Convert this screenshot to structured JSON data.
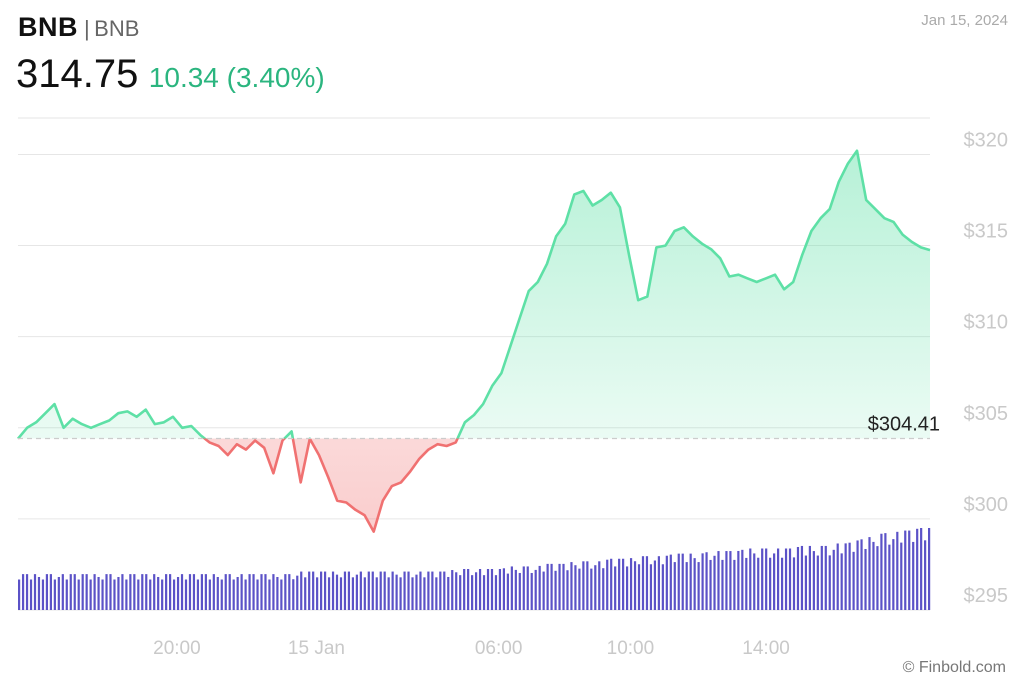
{
  "header": {
    "ticker": "BNB",
    "separator": "|",
    "name": "BNB",
    "price": "314.75",
    "change": "10.34 (3.40%)",
    "date": "Jan 15, 2024"
  },
  "credit": "© Finbold.com",
  "colors": {
    "up": "#5ee0a6",
    "down": "#f07171",
    "volume": "#5b52c7",
    "grid": "#e6e6e6",
    "change_text": "#2bb57f"
  },
  "chart_data": {
    "type": "line",
    "reference": {
      "value": 304.41,
      "label": "$304.41"
    },
    "ylim": [
      295,
      322
    ],
    "y_ticks": [
      {
        "value": 295,
        "label": "$295"
      },
      {
        "value": 300,
        "label": "$300"
      },
      {
        "value": 305,
        "label": "$305"
      },
      {
        "value": 310,
        "label": "$310"
      },
      {
        "value": 315,
        "label": "$315"
      },
      {
        "value": 320,
        "label": "$320"
      }
    ],
    "x_ticks": [
      {
        "value": 0.205,
        "label": "20:00"
      },
      {
        "value": 0.385,
        "label": "15 Jan"
      },
      {
        "value": 0.62,
        "label": "06:00"
      },
      {
        "value": 0.79,
        "label": "10:00"
      },
      {
        "value": 0.965,
        "label": "14:00"
      }
    ],
    "series": [
      {
        "x": [
          0,
          0.01,
          0.02,
          0.03,
          0.04,
          0.05,
          0.06,
          0.07,
          0.08,
          0.09,
          0.1,
          0.11,
          0.12,
          0.13,
          0.14,
          0.15,
          0.16,
          0.17,
          0.18,
          0.19,
          0.2,
          0.21,
          0.22,
          0.23,
          0.24,
          0.25,
          0.26,
          0.27,
          0.28,
          0.29,
          0.3,
          0.31,
          0.32,
          0.33,
          0.34,
          0.35,
          0.36,
          0.37,
          0.38,
          0.39,
          0.4,
          0.41,
          0.42,
          0.43,
          0.44,
          0.45,
          0.46,
          0.47,
          0.48,
          0.49,
          0.5,
          0.51,
          0.52,
          0.53,
          0.54,
          0.55,
          0.56,
          0.57,
          0.58,
          0.59,
          0.6,
          0.61,
          0.62,
          0.63,
          0.64,
          0.65,
          0.66,
          0.67,
          0.68,
          0.69,
          0.7,
          0.71,
          0.72,
          0.73,
          0.74,
          0.75,
          0.76,
          0.77,
          0.78,
          0.79,
          0.8,
          0.81,
          0.82,
          0.83,
          0.84,
          0.85,
          0.86,
          0.87,
          0.88,
          0.89,
          0.9,
          0.91,
          0.92,
          0.93,
          0.94,
          0.95,
          0.96,
          0.97,
          0.98,
          0.99,
          1.0
        ],
        "values": [
          304.4,
          305.0,
          305.3,
          305.8,
          306.3,
          305.0,
          305.5,
          305.2,
          305.0,
          305.2,
          305.4,
          305.8,
          305.9,
          305.6,
          306.0,
          305.2,
          305.3,
          305.6,
          305.0,
          305.1,
          304.6,
          304.2,
          304.0,
          303.5,
          304.1,
          303.8,
          304.3,
          303.9,
          302.5,
          304.3,
          304.8,
          302.0,
          304.4,
          303.5,
          302.3,
          301.0,
          300.9,
          300.5,
          300.2,
          299.3,
          301.0,
          301.8,
          302.0,
          302.6,
          303.3,
          303.8,
          304.1,
          304.0,
          304.2,
          305.3,
          305.7,
          306.3,
          307.3,
          308.0,
          309.5,
          311.0,
          312.5,
          313.0,
          314.0,
          315.5,
          316.2,
          317.8,
          318.0,
          317.2,
          317.5,
          317.9,
          317.1,
          314.5,
          312.0,
          312.2,
          314.9,
          315.0,
          315.8,
          316.0,
          315.5,
          315.1,
          314.8,
          314.3,
          313.3,
          313.4,
          313.2,
          313.0,
          313.2,
          313.4,
          312.6,
          313.0,
          314.5,
          315.8,
          316.5,
          317.0,
          318.5,
          319.5,
          320.2,
          317.5,
          317.0,
          316.5,
          316.3,
          315.6,
          315.2,
          314.9,
          314.75
        ]
      }
    ],
    "volume": {
      "values": [
        14,
        14,
        14,
        14,
        14,
        14,
        14,
        14,
        14,
        14,
        14,
        14,
        14,
        14,
        14,
        14,
        14,
        14,
        14,
        14,
        14,
        14,
        14,
        14,
        14,
        14,
        14,
        14,
        14,
        14,
        14,
        15,
        15,
        15,
        15,
        15,
        15,
        15,
        15,
        15,
        15,
        15,
        15,
        15,
        15,
        15,
        15,
        15,
        16,
        16,
        16,
        16,
        16,
        16,
        17,
        17,
        17,
        17,
        18,
        18,
        18,
        19,
        19,
        19,
        19,
        20,
        20,
        20,
        21,
        21,
        21,
        21,
        22,
        22,
        22,
        22,
        23,
        23,
        23,
        23,
        24,
        24,
        24,
        24,
        24,
        24,
        25,
        25,
        25,
        25,
        26,
        26,
        27,
        28,
        29,
        30,
        30,
        31,
        31,
        32,
        32
      ]
    }
  }
}
